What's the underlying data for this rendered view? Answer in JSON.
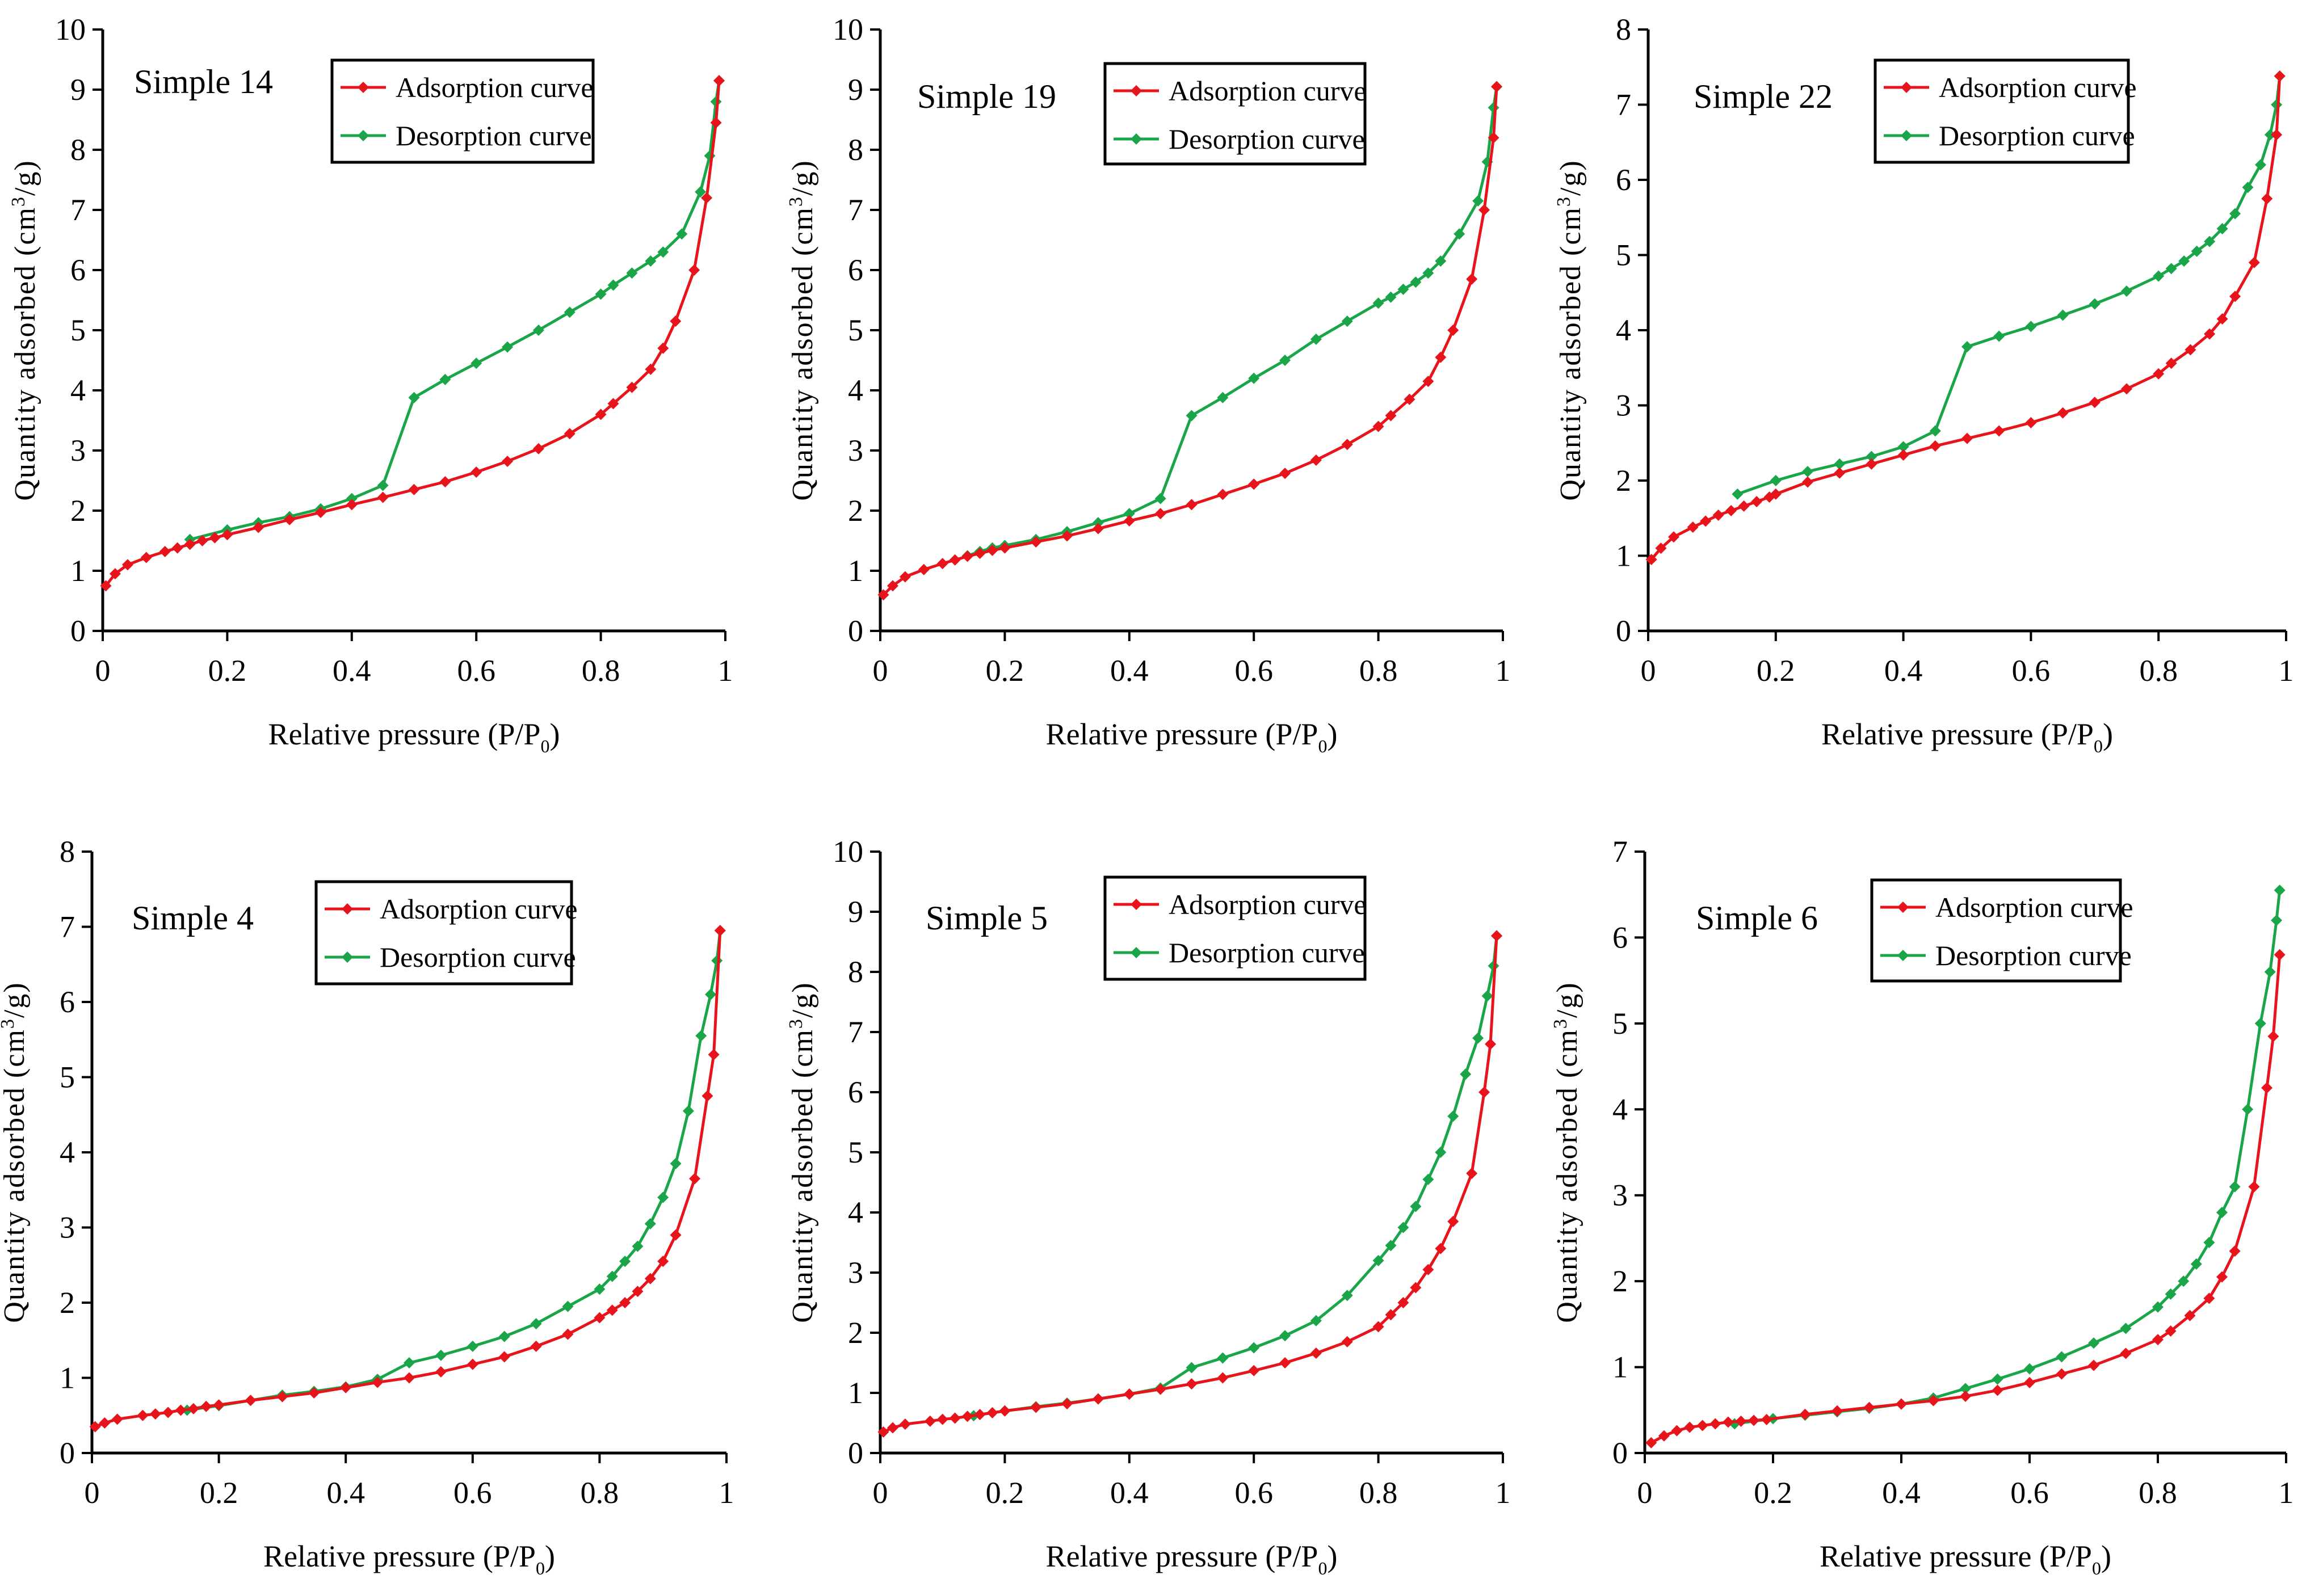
{
  "colors": {
    "adsorption": "#e8141b",
    "desorption": "#19a548",
    "axis": "#000000"
  },
  "chart_data": [
    {
      "type": "line",
      "title": "Simple 14",
      "xlabel": "Relative pressure (P/P0)",
      "ylabel": "Quantity adsorbed (cm3/g)",
      "xlim": [
        0,
        1
      ],
      "ylim": [
        0,
        10
      ],
      "xticks": [
        0,
        0.2,
        0.4,
        0.6,
        0.8,
        1
      ],
      "xtick_labels": [
        "0",
        "0.2",
        "0.4",
        "0.6",
        "0.8",
        "1"
      ],
      "yticks": [
        0,
        1,
        2,
        3,
        4,
        5,
        6,
        7,
        8,
        9,
        10
      ],
      "ytick_labels": [
        "0",
        "1",
        "2",
        "3",
        "4",
        "5",
        "6",
        "7",
        "8",
        "9",
        "10"
      ],
      "legend": "top-right",
      "series": [
        {
          "name": "Adsorption curve",
          "x": [
            0.005,
            0.02,
            0.04,
            0.07,
            0.1,
            0.12,
            0.14,
            0.16,
            0.18,
            0.2,
            0.25,
            0.3,
            0.35,
            0.4,
            0.45,
            0.5,
            0.55,
            0.6,
            0.65,
            0.7,
            0.75,
            0.8,
            0.82,
            0.85,
            0.88,
            0.9,
            0.92,
            0.95,
            0.97,
            0.985,
            0.99
          ],
          "y": [
            0.75,
            0.95,
            1.1,
            1.22,
            1.32,
            1.38,
            1.44,
            1.5,
            1.55,
            1.6,
            1.72,
            1.85,
            1.97,
            2.1,
            2.22,
            2.35,
            2.48,
            2.64,
            2.82,
            3.03,
            3.28,
            3.6,
            3.78,
            4.05,
            4.35,
            4.7,
            5.15,
            6.0,
            7.2,
            8.45,
            9.15
          ]
        },
        {
          "name": "Desorption curve",
          "x": [
            0.99,
            0.985,
            0.975,
            0.96,
            0.93,
            0.9,
            0.88,
            0.85,
            0.82,
            0.8,
            0.75,
            0.7,
            0.65,
            0.6,
            0.55,
            0.5,
            0.45,
            0.4,
            0.35,
            0.3,
            0.25,
            0.2,
            0.14
          ],
          "y": [
            9.15,
            8.8,
            7.9,
            7.3,
            6.6,
            6.3,
            6.15,
            5.95,
            5.75,
            5.6,
            5.3,
            5.0,
            4.72,
            4.45,
            4.18,
            3.88,
            2.42,
            2.2,
            2.03,
            1.9,
            1.8,
            1.68,
            1.52
          ]
        }
      ]
    },
    {
      "type": "line",
      "title": "Simple 19",
      "xlabel": "Relative pressure (P/P0)",
      "ylabel": "Quantity adsorbed (cm3/g)",
      "xlim": [
        0,
        1
      ],
      "ylim": [
        0,
        10
      ],
      "xticks": [
        0,
        0.2,
        0.4,
        0.6,
        0.8,
        1
      ],
      "xtick_labels": [
        "0",
        "0.2",
        "0.4",
        "0.6",
        "0.8",
        "1"
      ],
      "yticks": [
        0,
        1,
        2,
        3,
        4,
        5,
        6,
        7,
        8,
        9,
        10
      ],
      "ytick_labels": [
        "0",
        "1",
        "2",
        "3",
        "4",
        "5",
        "6",
        "7",
        "8",
        "9",
        "10"
      ],
      "legend": "top-right",
      "series": [
        {
          "name": "Adsorption curve",
          "x": [
            0.005,
            0.02,
            0.04,
            0.07,
            0.1,
            0.12,
            0.14,
            0.16,
            0.18,
            0.2,
            0.25,
            0.3,
            0.35,
            0.4,
            0.45,
            0.5,
            0.55,
            0.6,
            0.65,
            0.7,
            0.75,
            0.8,
            0.82,
            0.85,
            0.88,
            0.9,
            0.92,
            0.95,
            0.97,
            0.985,
            0.99
          ],
          "y": [
            0.6,
            0.75,
            0.9,
            1.02,
            1.12,
            1.18,
            1.24,
            1.29,
            1.34,
            1.38,
            1.48,
            1.58,
            1.7,
            1.83,
            1.95,
            2.1,
            2.27,
            2.44,
            2.62,
            2.84,
            3.1,
            3.4,
            3.58,
            3.85,
            4.15,
            4.55,
            5.0,
            5.85,
            7.0,
            8.2,
            9.05
          ]
        },
        {
          "name": "Desorption curve",
          "x": [
            0.99,
            0.985,
            0.975,
            0.96,
            0.93,
            0.9,
            0.88,
            0.86,
            0.84,
            0.82,
            0.8,
            0.75,
            0.7,
            0.65,
            0.6,
            0.55,
            0.5,
            0.45,
            0.4,
            0.35,
            0.3,
            0.25,
            0.2,
            0.18,
            0.16,
            0.14
          ],
          "y": [
            9.05,
            8.7,
            7.8,
            7.15,
            6.6,
            6.15,
            5.95,
            5.8,
            5.68,
            5.55,
            5.45,
            5.15,
            4.85,
            4.5,
            4.2,
            3.88,
            3.58,
            2.2,
            1.95,
            1.8,
            1.65,
            1.52,
            1.42,
            1.38,
            1.32,
            1.25
          ]
        }
      ]
    },
    {
      "type": "line",
      "title": "Simple 22",
      "xlabel": "Relative pressure (P/P0)",
      "ylabel": "Quantity adsorbed (cm3/g)",
      "xlim": [
        0,
        1
      ],
      "ylim": [
        0,
        8
      ],
      "xticks": [
        0,
        0.2,
        0.4,
        0.6,
        0.8,
        1
      ],
      "xtick_labels": [
        "0",
        "0.2",
        "0.4",
        "0.6",
        "0.8",
        "1"
      ],
      "yticks": [
        0,
        1,
        2,
        3,
        4,
        5,
        6,
        7,
        8
      ],
      "ytick_labels": [
        "0",
        "1",
        "2",
        "3",
        "4",
        "5",
        "6",
        "7",
        "8"
      ],
      "legend": "top-right",
      "series": [
        {
          "name": "Adsorption curve",
          "x": [
            0.005,
            0.02,
            0.04,
            0.07,
            0.09,
            0.11,
            0.13,
            0.15,
            0.17,
            0.19,
            0.2,
            0.25,
            0.3,
            0.35,
            0.4,
            0.45,
            0.5,
            0.55,
            0.6,
            0.65,
            0.7,
            0.75,
            0.8,
            0.82,
            0.85,
            0.88,
            0.9,
            0.92,
            0.95,
            0.97,
            0.985,
            0.99
          ],
          "y": [
            0.95,
            1.1,
            1.25,
            1.38,
            1.46,
            1.54,
            1.6,
            1.66,
            1.72,
            1.78,
            1.82,
            1.98,
            2.1,
            2.22,
            2.34,
            2.46,
            2.56,
            2.66,
            2.77,
            2.9,
            3.04,
            3.22,
            3.42,
            3.56,
            3.74,
            3.95,
            4.15,
            4.45,
            4.9,
            5.75,
            6.6,
            7.38
          ]
        },
        {
          "name": "Desorption curve",
          "x": [
            0.99,
            0.985,
            0.975,
            0.96,
            0.94,
            0.92,
            0.9,
            0.88,
            0.86,
            0.84,
            0.82,
            0.8,
            0.75,
            0.7,
            0.65,
            0.6,
            0.55,
            0.5,
            0.45,
            0.4,
            0.35,
            0.3,
            0.25,
            0.2,
            0.14
          ],
          "y": [
            7.38,
            7.0,
            6.6,
            6.2,
            5.9,
            5.55,
            5.35,
            5.18,
            5.05,
            4.92,
            4.82,
            4.72,
            4.52,
            4.35,
            4.2,
            4.05,
            3.92,
            3.78,
            2.66,
            2.45,
            2.32,
            2.22,
            2.12,
            2.0,
            1.82
          ]
        }
      ]
    },
    {
      "type": "line",
      "title": "Simple 4",
      "xlabel": "Relative pressure (P/P0)",
      "ylabel": "Quantity adsorbed (cm3/g)",
      "xlim": [
        0,
        1
      ],
      "ylim": [
        0,
        8
      ],
      "xticks": [
        0,
        0.2,
        0.4,
        0.6,
        0.8,
        1
      ],
      "xtick_labels": [
        "0",
        "0.2",
        "0.4",
        "0.6",
        "0.8",
        "1"
      ],
      "yticks": [
        0,
        1,
        2,
        3,
        4,
        5,
        6,
        7,
        8
      ],
      "ytick_labels": [
        "0",
        "1",
        "2",
        "3",
        "4",
        "5",
        "6",
        "7",
        "8"
      ],
      "legend": "top-right",
      "series": [
        {
          "name": "Adsorption curve",
          "x": [
            0.005,
            0.02,
            0.04,
            0.08,
            0.1,
            0.12,
            0.14,
            0.16,
            0.18,
            0.2,
            0.25,
            0.3,
            0.35,
            0.4,
            0.45,
            0.5,
            0.55,
            0.6,
            0.65,
            0.7,
            0.75,
            0.8,
            0.82,
            0.84,
            0.86,
            0.88,
            0.9,
            0.92,
            0.95,
            0.97,
            0.98,
            0.99
          ],
          "y": [
            0.35,
            0.4,
            0.45,
            0.5,
            0.52,
            0.54,
            0.57,
            0.59,
            0.62,
            0.64,
            0.7,
            0.75,
            0.8,
            0.87,
            0.94,
            1.0,
            1.08,
            1.18,
            1.28,
            1.42,
            1.58,
            1.8,
            1.9,
            2.0,
            2.15,
            2.32,
            2.55,
            2.9,
            3.65,
            4.75,
            5.3,
            6.95
          ]
        },
        {
          "name": "Desorption curve",
          "x": [
            0.99,
            0.985,
            0.975,
            0.96,
            0.94,
            0.92,
            0.9,
            0.88,
            0.86,
            0.84,
            0.82,
            0.8,
            0.75,
            0.7,
            0.65,
            0.6,
            0.55,
            0.5,
            0.45,
            0.4,
            0.35,
            0.3,
            0.25,
            0.2,
            0.15
          ],
          "y": [
            6.95,
            6.55,
            6.1,
            5.55,
            4.55,
            3.85,
            3.4,
            3.05,
            2.75,
            2.55,
            2.35,
            2.18,
            1.95,
            1.72,
            1.55,
            1.42,
            1.3,
            1.2,
            0.98,
            0.88,
            0.82,
            0.77,
            0.7,
            0.63,
            0.57
          ]
        }
      ]
    },
    {
      "type": "line",
      "title": "Simple 5",
      "xlabel": "Relative pressure (P/P0)",
      "ylabel": "Quantity adsorbed (cm3/g)",
      "xlim": [
        0,
        1
      ],
      "ylim": [
        0,
        10
      ],
      "xticks": [
        0,
        0.2,
        0.4,
        0.6,
        0.8,
        1
      ],
      "xtick_labels": [
        "0",
        "0.2",
        "0.4",
        "0.6",
        "0.8",
        "1"
      ],
      "yticks": [
        0,
        1,
        2,
        3,
        4,
        5,
        6,
        7,
        8,
        9,
        10
      ],
      "ytick_labels": [
        "0",
        "1",
        "2",
        "3",
        "4",
        "5",
        "6",
        "7",
        "8",
        "9",
        "10"
      ],
      "legend": "top-right",
      "series": [
        {
          "name": "Adsorption curve",
          "x": [
            0.005,
            0.02,
            0.04,
            0.08,
            0.1,
            0.12,
            0.14,
            0.16,
            0.18,
            0.2,
            0.25,
            0.3,
            0.35,
            0.4,
            0.45,
            0.5,
            0.55,
            0.6,
            0.65,
            0.7,
            0.75,
            0.8,
            0.82,
            0.84,
            0.86,
            0.88,
            0.9,
            0.92,
            0.95,
            0.97,
            0.98,
            0.99
          ],
          "y": [
            0.35,
            0.42,
            0.48,
            0.53,
            0.56,
            0.58,
            0.61,
            0.64,
            0.67,
            0.7,
            0.76,
            0.82,
            0.9,
            0.98,
            1.06,
            1.15,
            1.25,
            1.37,
            1.5,
            1.66,
            1.85,
            2.1,
            2.3,
            2.5,
            2.75,
            3.05,
            3.4,
            3.85,
            4.65,
            6.0,
            6.8,
            8.6
          ]
        },
        {
          "name": "Desorption curve",
          "x": [
            0.99,
            0.985,
            0.975,
            0.96,
            0.94,
            0.92,
            0.9,
            0.88,
            0.86,
            0.84,
            0.82,
            0.8,
            0.75,
            0.7,
            0.65,
            0.6,
            0.55,
            0.5,
            0.45,
            0.4,
            0.35,
            0.3,
            0.25,
            0.2,
            0.15
          ],
          "y": [
            8.6,
            8.1,
            7.6,
            6.9,
            6.3,
            5.6,
            5.0,
            4.55,
            4.1,
            3.75,
            3.45,
            3.2,
            2.62,
            2.2,
            1.95,
            1.75,
            1.58,
            1.42,
            1.08,
            0.98,
            0.9,
            0.83,
            0.77,
            0.7,
            0.62
          ]
        }
      ]
    },
    {
      "type": "line",
      "title": "Simple 6",
      "xlabel": "Relative pressure (P/P0)",
      "ylabel": "Quantity adsorbed (cm3/g)",
      "xlim": [
        0,
        1
      ],
      "ylim": [
        0,
        7
      ],
      "xticks": [
        0,
        0.2,
        0.4,
        0.6,
        0.8,
        1
      ],
      "xtick_labels": [
        "0",
        "0.2",
        "0.4",
        "0.6",
        "0.8",
        "1"
      ],
      "yticks": [
        0,
        1,
        2,
        3,
        4,
        5,
        6,
        7
      ],
      "ytick_labels": [
        "0",
        "1",
        "2",
        "3",
        "4",
        "5",
        "6",
        "7"
      ],
      "legend": "top-right",
      "series": [
        {
          "name": "Adsorption curve",
          "x": [
            0.01,
            0.03,
            0.05,
            0.07,
            0.09,
            0.11,
            0.13,
            0.15,
            0.17,
            0.19,
            0.25,
            0.3,
            0.35,
            0.4,
            0.45,
            0.5,
            0.55,
            0.6,
            0.65,
            0.7,
            0.75,
            0.8,
            0.82,
            0.85,
            0.88,
            0.9,
            0.92,
            0.95,
            0.97,
            0.98,
            0.99
          ],
          "y": [
            0.12,
            0.2,
            0.26,
            0.3,
            0.32,
            0.34,
            0.36,
            0.37,
            0.38,
            0.39,
            0.45,
            0.49,
            0.53,
            0.57,
            0.61,
            0.66,
            0.73,
            0.82,
            0.92,
            1.02,
            1.16,
            1.32,
            1.42,
            1.6,
            1.8,
            2.05,
            2.35,
            3.1,
            4.25,
            4.85,
            5.8
          ]
        },
        {
          "name": "Desorption curve",
          "x": [
            0.99,
            0.985,
            0.975,
            0.96,
            0.94,
            0.92,
            0.9,
            0.88,
            0.86,
            0.84,
            0.82,
            0.8,
            0.75,
            0.7,
            0.65,
            0.6,
            0.55,
            0.5,
            0.45,
            0.4,
            0.35,
            0.3,
            0.25,
            0.2,
            0.14
          ],
          "y": [
            6.55,
            6.2,
            5.6,
            5.0,
            4.0,
            3.1,
            2.8,
            2.45,
            2.2,
            2.0,
            1.85,
            1.7,
            1.45,
            1.28,
            1.12,
            0.98,
            0.86,
            0.75,
            0.64,
            0.57,
            0.52,
            0.48,
            0.44,
            0.4,
            0.34
          ]
        }
      ]
    }
  ]
}
